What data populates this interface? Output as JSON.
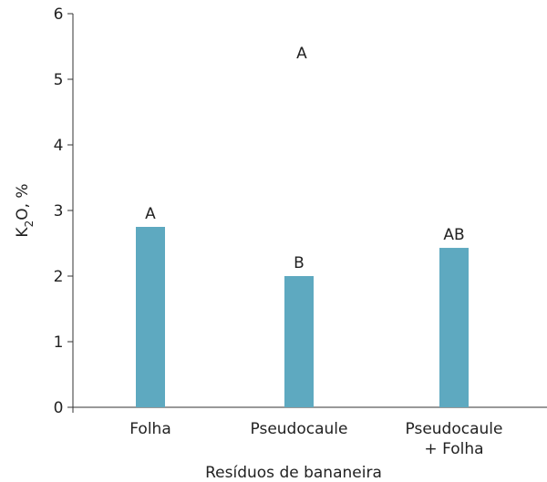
{
  "chart_data": {
    "type": "bar",
    "categories": [
      [
        "Folha"
      ],
      [
        "Pseudocaule"
      ],
      [
        "Pseudocaule",
        "+ Folha"
      ]
    ],
    "values": [
      2.75,
      2.0,
      2.43
    ],
    "bar_labels": [
      "A",
      "B",
      "AB"
    ],
    "annotation": {
      "text": "A",
      "x_between": [
        1,
        2
      ],
      "y": 5.4
    },
    "xlabel": "Resíduos de bananeira",
    "ylabel": "K2O, %",
    "ylabel_parts": {
      "base": "K",
      "sub": "2",
      "rest": "O, %"
    },
    "ylim": [
      0,
      6
    ],
    "yticks": [
      "0",
      "1",
      "2",
      "3",
      "4",
      "5",
      "6"
    ],
    "grid": false,
    "bar_color": "#5ea9c0"
  }
}
